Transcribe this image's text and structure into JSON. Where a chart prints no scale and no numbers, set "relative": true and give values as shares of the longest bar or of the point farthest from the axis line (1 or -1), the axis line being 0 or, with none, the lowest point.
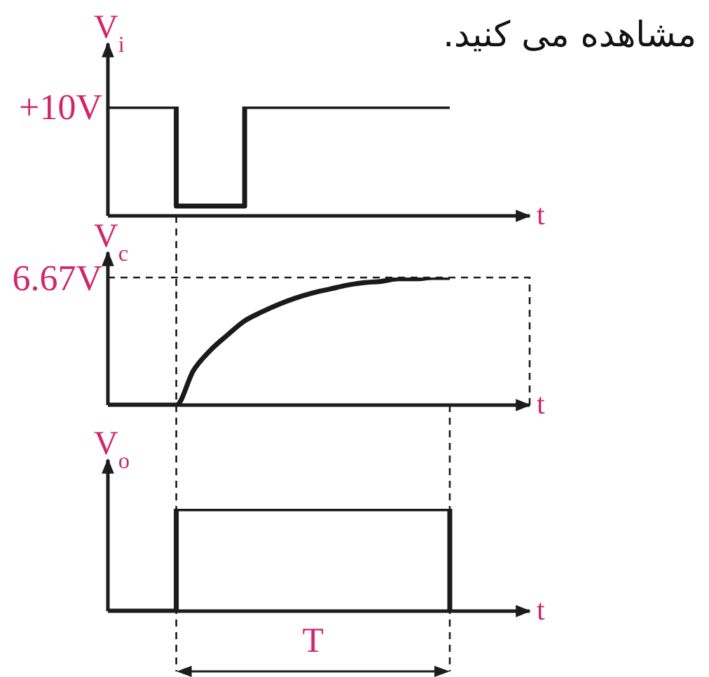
{
  "chart_data": [
    {
      "type": "step",
      "ylabel": "V$_{i}$",
      "xlabel": "t",
      "categories": [
        null,
        null,
        null,
        null,
        null,
        null,
        null,
        null,
        null,
        null,
        null,
        null,
        null,
        null,
        null,
        null,
        null,
        null,
        null,
        null,
        null
      ],
      "values": [
        1,
        1,
        1,
        1,
        0.09,
        0.09,
        0.09,
        0.09,
        1,
        1,
        1,
        1,
        1,
        1,
        1,
        1,
        1,
        1,
        1,
        1,
        1
      ],
      "color": "#1a1a1a",
      "relative": true,
      "annotations": [
        "مشاهده می کنید.",
        "+10V"
      ]
    },
    {
      "type": "line",
      "ylabel": "V$_{c}$",
      "xlabel": "t",
      "categories": [
        null,
        null,
        null,
        null,
        null,
        null,
        null,
        null,
        null,
        null,
        null,
        null,
        null,
        null,
        null,
        null,
        null,
        null,
        null,
        null,
        null
      ],
      "values": [
        0,
        0,
        0,
        0,
        0,
        0.27,
        0.43,
        0.55,
        0.66,
        0.73,
        0.79,
        0.84,
        0.88,
        0.91,
        0.94,
        0.96,
        0.97,
        0.99,
        0.99,
        1,
        1
      ],
      "color": "#1a1a1a",
      "relative": true,
      "ref_lines": [
        {
          "axis": "y",
          "value": 1,
          "label": "6.67V",
          "line_style": "dashed"
        }
      ]
    },
    {
      "type": "step",
      "ylabel": "V$_{o}$",
      "xlabel": "t",
      "categories": [
        null,
        null,
        null,
        null,
        null,
        null,
        null,
        null,
        null,
        null,
        null,
        null,
        null,
        null,
        null,
        null,
        null,
        null,
        null,
        null,
        null
      ],
      "values": [
        0,
        0,
        0,
        0,
        1,
        1,
        1,
        1,
        1,
        1,
        1,
        1,
        1,
        1,
        1,
        1,
        1,
        1,
        1,
        1,
        0
      ],
      "color": "#1a1a1a",
      "relative": true,
      "annotations": [
        "T"
      ]
    }
  ]
}
